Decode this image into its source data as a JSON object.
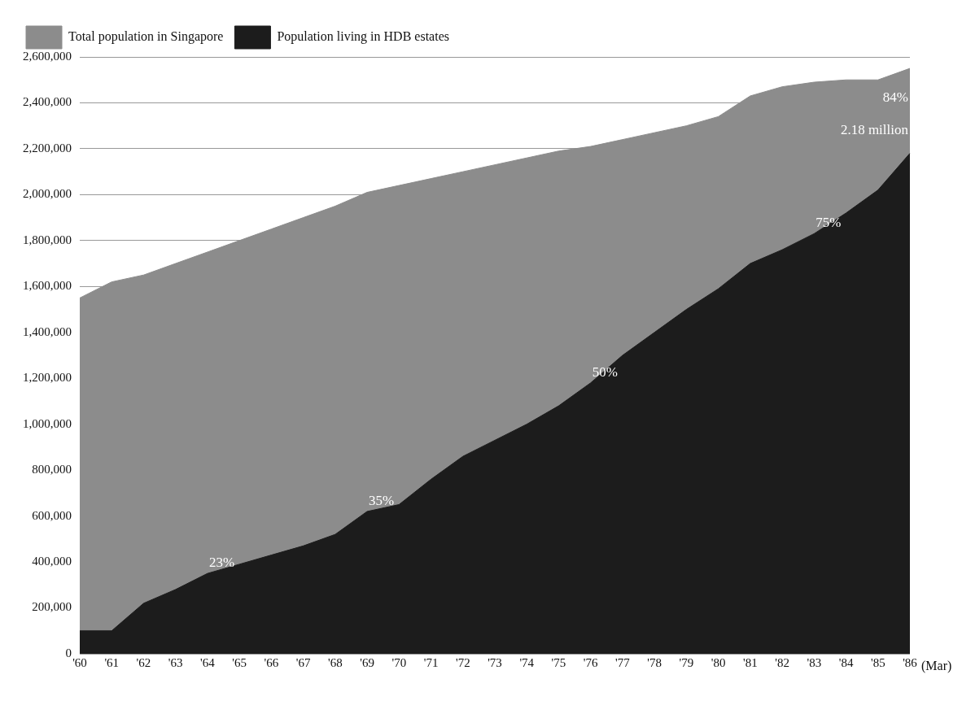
{
  "chart_data": {
    "type": "area",
    "xlabel": "(Mar)",
    "categories": [
      "'60",
      "'61",
      "'62",
      "'63",
      "'64",
      "'65",
      "'66",
      "'67",
      "'68",
      "'69",
      "'70",
      "'71",
      "'72",
      "'73",
      "'74",
      "'75",
      "'76",
      "'77",
      "'78",
      "'79",
      "'80",
      "'81",
      "'82",
      "'83",
      "'84",
      "'85",
      "'86"
    ],
    "series": [
      {
        "name": "Total population in Singapore",
        "color": "#8c8c8c",
        "values": [
          1550000,
          1620000,
          1650000,
          1700000,
          1750000,
          1800000,
          1850000,
          1900000,
          1950000,
          2010000,
          2040000,
          2070000,
          2100000,
          2130000,
          2160000,
          2190000,
          2210000,
          2240000,
          2270000,
          2300000,
          2340000,
          2430000,
          2470000,
          2490000,
          2500000,
          2500000,
          2550000
        ]
      },
      {
        "name": "Population living in HDB estates",
        "color": "#1c1c1c",
        "values": [
          100000,
          100000,
          220000,
          280000,
          350000,
          390000,
          430000,
          470000,
          520000,
          620000,
          650000,
          760000,
          860000,
          930000,
          1000000,
          1080000,
          1180000,
          1300000,
          1400000,
          1500000,
          1590000,
          1700000,
          1760000,
          1830000,
          1920000,
          2020000,
          2180000
        ]
      }
    ],
    "ylim": [
      0,
      2600000
    ],
    "yticks": [
      {
        "value": 0,
        "label": "0"
      },
      {
        "value": 200000,
        "label": "200,000"
      },
      {
        "value": 400000,
        "label": "400,000"
      },
      {
        "value": 600000,
        "label": "600,000"
      },
      {
        "value": 800000,
        "label": "800,000"
      },
      {
        "value": 1000000,
        "label": "1,000,000"
      },
      {
        "value": 1200000,
        "label": "1,200,000"
      },
      {
        "value": 1400000,
        "label": "1,400,000"
      },
      {
        "value": 1600000,
        "label": "1,600,000"
      },
      {
        "value": 1800000,
        "label": "1,800,000"
      },
      {
        "value": 2000000,
        "label": "2,000,000"
      },
      {
        "value": 2200000,
        "label": "2,200,000"
      },
      {
        "value": 2400000,
        "label": "2,400,000"
      },
      {
        "value": 2600000,
        "label": "2,600,000"
      }
    ],
    "grid": "y",
    "legend": "top left",
    "annotations": [
      {
        "text": "23%",
        "x": "'64",
        "y": 350000
      },
      {
        "text": "35%",
        "x": "'69",
        "y": 620000
      },
      {
        "text": "50%",
        "x": "'76",
        "y": 1180000
      },
      {
        "text": "75%",
        "x": "'83",
        "y": 1830000
      },
      {
        "text": "84%",
        "x": "'86",
        "y": 2420000
      },
      {
        "text": "2.18 million",
        "x": "'86",
        "y": 2280000
      }
    ]
  }
}
